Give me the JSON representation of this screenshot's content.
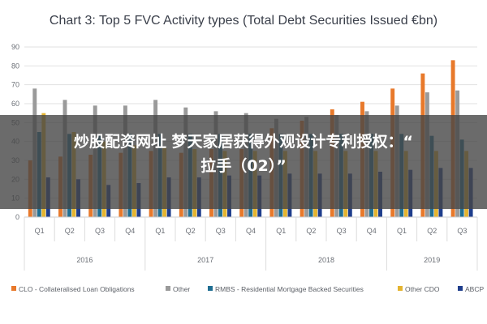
{
  "chart_data": {
    "type": "bar",
    "title": "Chart 3: Top 5 FVC Activity types (Total Debt Securities Issued €bn)",
    "quarters": [
      "Q1",
      "Q2",
      "Q3",
      "Q4",
      "Q1",
      "Q2",
      "Q3",
      "Q4",
      "Q1",
      "Q2",
      "Q3",
      "Q4",
      "Q1",
      "Q2",
      "Q3"
    ],
    "years": [
      {
        "label": "2016",
        "span": 4
      },
      {
        "label": "2017",
        "span": 4
      },
      {
        "label": "2018",
        "span": 4
      },
      {
        "label": "2019",
        "span": 3
      }
    ],
    "ylim": [
      0,
      90
    ],
    "yticks": [
      0,
      10,
      20,
      30,
      40,
      50,
      60,
      70,
      80,
      90
    ],
    "series": [
      {
        "name": "CLO - Collateralised Loan Obligations",
        "color": "#e8792b",
        "values": [
          30,
          32,
          33,
          34,
          35,
          34,
          36,
          36,
          47,
          51,
          57,
          61,
          68,
          76,
          83
        ]
      },
      {
        "name": "Other",
        "color": "#9a9a9a",
        "values": [
          68,
          62,
          59,
          59,
          62,
          58,
          56,
          55,
          52,
          53,
          54,
          56,
          59,
          66,
          67
        ]
      },
      {
        "name": "RMBS - Residential Mortgage Backed Securities",
        "color": "#1f6e92",
        "values": [
          45,
          44,
          43,
          44,
          44,
          44,
          44,
          44,
          44,
          44,
          44,
          44,
          44,
          43,
          41
        ]
      },
      {
        "name": "Other CDO",
        "color": "#e4b430",
        "values": [
          55,
          45,
          40,
          38,
          37,
          36,
          35,
          35,
          35,
          35,
          35,
          35,
          35,
          35,
          35
        ]
      },
      {
        "name": "ABCP",
        "color": "#1f3e8c",
        "values": [
          21,
          20,
          17,
          18,
          21,
          21,
          22,
          22,
          23,
          23,
          23,
          24,
          25,
          26,
          26
        ]
      }
    ]
  },
  "overlay": {
    "line1": "炒股配资网址 梦天家居获得外观设计专利授权：“",
    "line2": "拉手（02）”"
  }
}
